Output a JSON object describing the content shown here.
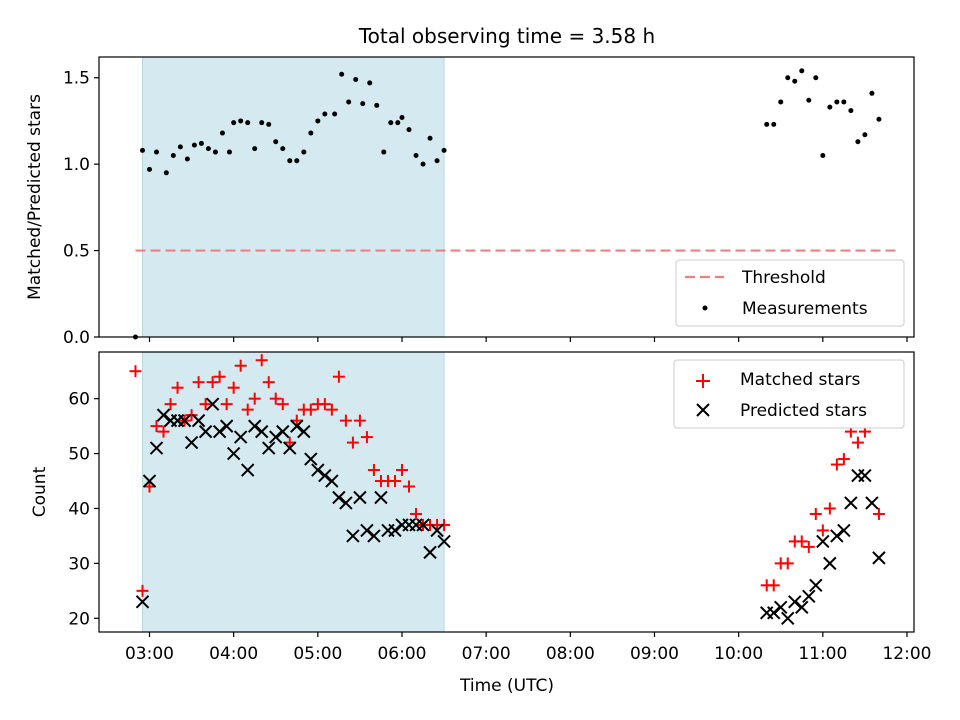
{
  "chart_data": {
    "type": "scatter",
    "title": "Total observing time = 3.58 h",
    "xlabel": "Time (UTC)",
    "x_ticks": [
      "03:00",
      "04:00",
      "05:00",
      "06:00",
      "07:00",
      "08:00",
      "09:00",
      "10:00",
      "11:00",
      "12:00"
    ],
    "xlim": [
      "02:24",
      "12:05"
    ],
    "shaded_interval": {
      "start": "02:55",
      "end": "06:30",
      "color": "#d4eaf0"
    },
    "panels": [
      {
        "ylabel": "Matched/Predicted stars",
        "ylim": [
          0,
          1.62
        ],
        "y_ticks": [
          "0.0",
          "0.5",
          "1.0",
          "1.5"
        ],
        "legend_position": "lower-right",
        "threshold": {
          "name": "Threshold",
          "value": 0.5,
          "x_start": "02:50",
          "x_end": "11:55",
          "color": "#f08080"
        },
        "series": [
          {
            "name": "Measurements",
            "color": "#000000",
            "marker": "dot",
            "points": [
              [
                "02:50",
                0.0
              ],
              [
                "02:55",
                1.08
              ],
              [
                "03:00",
                0.97
              ],
              [
                "03:05",
                1.07
              ],
              [
                "03:12",
                0.95
              ],
              [
                "03:17",
                1.05
              ],
              [
                "03:22",
                1.1
              ],
              [
                "03:27",
                1.03
              ],
              [
                "03:32",
                1.11
              ],
              [
                "03:37",
                1.12
              ],
              [
                "03:42",
                1.09
              ],
              [
                "03:47",
                1.07
              ],
              [
                "03:52",
                1.18
              ],
              [
                "03:57",
                1.07
              ],
              [
                "04:00",
                1.24
              ],
              [
                "04:05",
                1.25
              ],
              [
                "04:10",
                1.24
              ],
              [
                "04:15",
                1.09
              ],
              [
                "04:20",
                1.24
              ],
              [
                "04:25",
                1.23
              ],
              [
                "04:30",
                1.13
              ],
              [
                "04:35",
                1.09
              ],
              [
                "04:40",
                1.02
              ],
              [
                "04:45",
                1.02
              ],
              [
                "04:50",
                1.07
              ],
              [
                "04:55",
                1.18
              ],
              [
                "05:00",
                1.25
              ],
              [
                "05:05",
                1.29
              ],
              [
                "05:12",
                1.29
              ],
              [
                "05:17",
                1.52
              ],
              [
                "05:22",
                1.36
              ],
              [
                "05:27",
                1.49
              ],
              [
                "05:32",
                1.35
              ],
              [
                "05:37",
                1.47
              ],
              [
                "05:42",
                1.34
              ],
              [
                "05:47",
                1.07
              ],
              [
                "05:52",
                1.24
              ],
              [
                "05:57",
                1.24
              ],
              [
                "06:00",
                1.27
              ],
              [
                "06:05",
                1.2
              ],
              [
                "06:10",
                1.05
              ],
              [
                "06:15",
                1.0
              ],
              [
                "06:20",
                1.15
              ],
              [
                "06:25",
                1.02
              ],
              [
                "06:30",
                1.08
              ],
              [
                "10:20",
                1.23
              ],
              [
                "10:25",
                1.23
              ],
              [
                "10:30",
                1.36
              ],
              [
                "10:35",
                1.5
              ],
              [
                "10:40",
                1.48
              ],
              [
                "10:45",
                1.54
              ],
              [
                "10:50",
                1.37
              ],
              [
                "10:55",
                1.5
              ],
              [
                "11:00",
                1.05
              ],
              [
                "11:05",
                1.33
              ],
              [
                "11:10",
                1.36
              ],
              [
                "11:15",
                1.36
              ],
              [
                "11:20",
                1.31
              ],
              [
                "11:25",
                1.13
              ],
              [
                "11:30",
                1.17
              ],
              [
                "11:35",
                1.41
              ],
              [
                "11:40",
                1.26
              ]
            ]
          }
        ]
      },
      {
        "ylabel": "Count",
        "ylim": [
          17.5,
          68.5
        ],
        "y_ticks": [
          "20",
          "30",
          "40",
          "50",
          "60"
        ],
        "legend_position": "upper-right",
        "series": [
          {
            "name": "Matched stars",
            "color": "#ff0000",
            "marker": "plus",
            "points": [
              [
                "02:50",
                65
              ],
              [
                "02:55",
                25
              ],
              [
                "03:00",
                44
              ],
              [
                "03:05",
                55
              ],
              [
                "03:10",
                54
              ],
              [
                "03:15",
                59
              ],
              [
                "03:20",
                62
              ],
              [
                "03:25",
                56
              ],
              [
                "03:30",
                57
              ],
              [
                "03:35",
                63
              ],
              [
                "03:40",
                59
              ],
              [
                "03:45",
                63
              ],
              [
                "03:50",
                64
              ],
              [
                "03:55",
                59
              ],
              [
                "04:00",
                62
              ],
              [
                "04:05",
                66
              ],
              [
                "04:10",
                58
              ],
              [
                "04:15",
                60
              ],
              [
                "04:20",
                67
              ],
              [
                "04:25",
                63
              ],
              [
                "04:30",
                60
              ],
              [
                "04:35",
                59
              ],
              [
                "04:40",
                52
              ],
              [
                "04:45",
                56
              ],
              [
                "04:50",
                58
              ],
              [
                "04:55",
                58
              ],
              [
                "05:00",
                59
              ],
              [
                "05:05",
                59
              ],
              [
                "05:10",
                58
              ],
              [
                "05:15",
                64
              ],
              [
                "05:20",
                56
              ],
              [
                "05:25",
                52
              ],
              [
                "05:30",
                56
              ],
              [
                "05:35",
                53
              ],
              [
                "05:40",
                47
              ],
              [
                "05:45",
                45
              ],
              [
                "05:50",
                45
              ],
              [
                "05:55",
                45
              ],
              [
                "06:00",
                47
              ],
              [
                "06:05",
                44
              ],
              [
                "06:10",
                39
              ],
              [
                "06:15",
                37
              ],
              [
                "06:20",
                37
              ],
              [
                "06:25",
                37
              ],
              [
                "06:30",
                37
              ],
              [
                "10:20",
                26
              ],
              [
                "10:25",
                26
              ],
              [
                "10:30",
                30
              ],
              [
                "10:35",
                30
              ],
              [
                "10:40",
                34
              ],
              [
                "10:45",
                34
              ],
              [
                "10:50",
                33
              ],
              [
                "10:55",
                39
              ],
              [
                "11:00",
                36
              ],
              [
                "11:05",
                40
              ],
              [
                "11:10",
                48
              ],
              [
                "11:15",
                49
              ],
              [
                "11:20",
                54
              ],
              [
                "11:25",
                52
              ],
              [
                "11:30",
                54
              ],
              [
                "11:40",
                39
              ]
            ]
          },
          {
            "name": "Predicted stars",
            "color": "#000000",
            "marker": "x",
            "points": [
              [
                "02:55",
                23
              ],
              [
                "03:00",
                45
              ],
              [
                "03:05",
                51
              ],
              [
                "03:10",
                57
              ],
              [
                "03:15",
                56
              ],
              [
                "03:20",
                56
              ],
              [
                "03:25",
                56
              ],
              [
                "03:30",
                52
              ],
              [
                "03:35",
                56
              ],
              [
                "03:40",
                54
              ],
              [
                "03:45",
                59
              ],
              [
                "03:50",
                54
              ],
              [
                "03:55",
                55
              ],
              [
                "04:00",
                50
              ],
              [
                "04:05",
                53
              ],
              [
                "04:10",
                47
              ],
              [
                "04:15",
                55
              ],
              [
                "04:20",
                54
              ],
              [
                "04:25",
                51
              ],
              [
                "04:30",
                53
              ],
              [
                "04:35",
                54
              ],
              [
                "04:40",
                51
              ],
              [
                "04:45",
                55
              ],
              [
                "04:50",
                54
              ],
              [
                "04:55",
                49
              ],
              [
                "05:00",
                47
              ],
              [
                "05:05",
                46
              ],
              [
                "05:10",
                45
              ],
              [
                "05:15",
                42
              ],
              [
                "05:20",
                41
              ],
              [
                "05:25",
                35
              ],
              [
                "05:30",
                42
              ],
              [
                "05:35",
                36
              ],
              [
                "05:40",
                35
              ],
              [
                "05:45",
                42
              ],
              [
                "05:50",
                36
              ],
              [
                "05:55",
                36
              ],
              [
                "06:00",
                37
              ],
              [
                "06:05",
                37
              ],
              [
                "06:10",
                37
              ],
              [
                "06:15",
                37
              ],
              [
                "06:20",
                32
              ],
              [
                "06:25",
                36
              ],
              [
                "06:30",
                34
              ],
              [
                "10:20",
                21
              ],
              [
                "10:25",
                21
              ],
              [
                "10:30",
                22
              ],
              [
                "10:35",
                20
              ],
              [
                "10:40",
                23
              ],
              [
                "10:45",
                22
              ],
              [
                "10:50",
                24
              ],
              [
                "10:55",
                26
              ],
              [
                "11:00",
                34
              ],
              [
                "11:05",
                30
              ],
              [
                "11:10",
                35
              ],
              [
                "11:15",
                36
              ],
              [
                "11:20",
                41
              ],
              [
                "11:25",
                46
              ],
              [
                "11:30",
                46
              ],
              [
                "11:35",
                41
              ],
              [
                "11:40",
                31
              ]
            ]
          }
        ]
      }
    ]
  }
}
